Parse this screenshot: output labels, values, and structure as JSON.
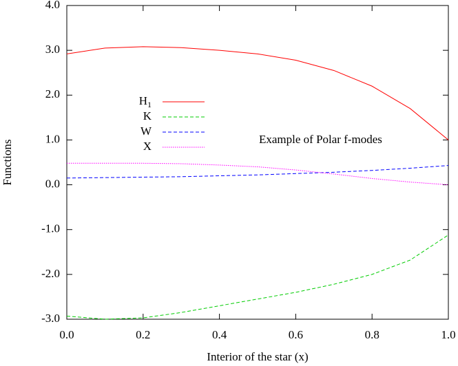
{
  "chart_data": {
    "type": "line",
    "xlabel": "Interior of the star (x)",
    "ylabel": "Functions",
    "annotation": "Example of Polar f-modes",
    "x": [
      0,
      0.1,
      0.2,
      0.3,
      0.4,
      0.5,
      0.6,
      0.7,
      0.8,
      0.9,
      1.0
    ],
    "series": [
      {
        "name": "H1",
        "color": "#ff0000",
        "dash": "solid",
        "values": [
          2.92,
          3.05,
          3.08,
          3.06,
          3.0,
          2.92,
          2.78,
          2.55,
          2.2,
          1.7,
          1.0
        ]
      },
      {
        "name": "K",
        "color": "#00cc00",
        "dash": "dashed",
        "values": [
          -2.93,
          -3.0,
          -2.97,
          -2.85,
          -2.7,
          -2.55,
          -2.4,
          -2.22,
          -2.0,
          -1.68,
          -1.12
        ]
      },
      {
        "name": "W",
        "color": "#0000ff",
        "dash": "dashed",
        "values": [
          0.15,
          0.16,
          0.17,
          0.18,
          0.2,
          0.22,
          0.25,
          0.28,
          0.32,
          0.37,
          0.43
        ]
      },
      {
        "name": "X",
        "color": "#ff00ff",
        "dash": "dotted",
        "values": [
          0.48,
          0.48,
          0.48,
          0.47,
          0.44,
          0.4,
          0.33,
          0.24,
          0.14,
          0.06,
          0.0
        ]
      }
    ],
    "xlim": [
      0,
      1.0
    ],
    "ylim": [
      -3.0,
      4.0
    ],
    "xticks": [
      {
        "value": 0,
        "label": "0.0"
      },
      {
        "value": 0.2,
        "label": "0.2"
      },
      {
        "value": 0.4,
        "label": "0.4"
      },
      {
        "value": 0.6,
        "label": "0.6"
      },
      {
        "value": 0.8,
        "label": "0.8"
      },
      {
        "value": 1.0,
        "label": "1.0"
      }
    ],
    "yticks": [
      {
        "value": -3,
        "label": "-3.0"
      },
      {
        "value": -2,
        "label": "-2.0"
      },
      {
        "value": -1,
        "label": "-1.0"
      },
      {
        "value": 0,
        "label": "0.0"
      },
      {
        "value": 1,
        "label": "1.0"
      },
      {
        "value": 2,
        "label": "2.0"
      },
      {
        "value": 3,
        "label": "3.0"
      },
      {
        "value": 4,
        "label": "4.0"
      }
    ],
    "grid": false
  }
}
